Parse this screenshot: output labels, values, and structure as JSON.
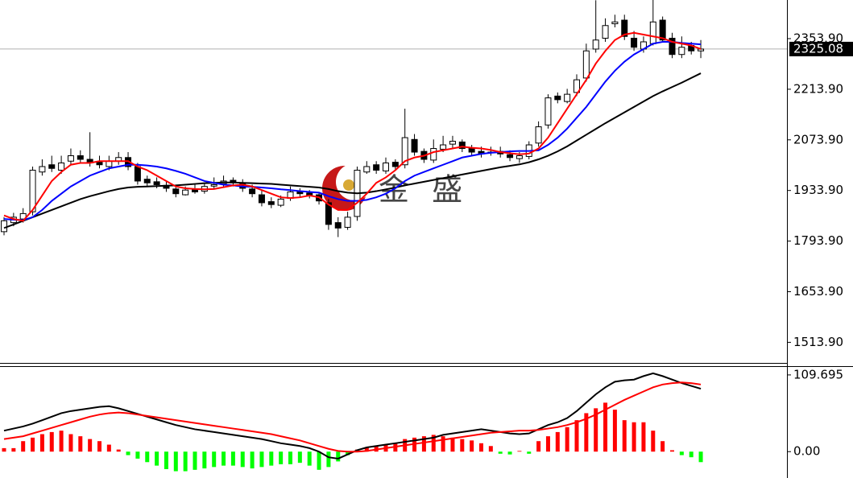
{
  "watermark": "金 盛",
  "chart_data": [
    {
      "type": "candlestick",
      "ylim": [
        1454.7,
        2460.7
      ],
      "yticks": [
        {
          "value": 2353.9,
          "label": "2353.90"
        },
        {
          "value": 2213.9,
          "label": "2213.90"
        },
        {
          "value": 2073.9,
          "label": "2073.90"
        },
        {
          "value": 1933.9,
          "label": "1933.90"
        },
        {
          "value": 1793.9,
          "label": "1793.90"
        },
        {
          "value": 1653.9,
          "label": "1653.90"
        },
        {
          "value": 1513.9,
          "label": "1513.90"
        }
      ],
      "last_price": 2325.08,
      "up_color": "#ffffff",
      "down_color": "#000000",
      "open": [
        1820,
        1845,
        1855,
        1875,
        1985,
        2005,
        1990,
        2015,
        2030,
        2020,
        2012,
        2000,
        2015,
        2025,
        2000,
        1965,
        1958,
        1948,
        1938,
        1922,
        1937,
        1932,
        1946,
        1952,
        1962,
        1952,
        1938,
        1922,
        1903,
        1893,
        1912,
        1932,
        1927,
        1922,
        1900,
        1845,
        1832,
        1862,
        1985,
        2005,
        1988,
        2012,
        2005,
        2075,
        2042,
        2018,
        2048,
        2062,
        2068,
        2052,
        2042,
        2038,
        2042,
        2033,
        2022,
        2028,
        2065,
        2115,
        2195,
        2180,
        2205,
        2245,
        2325,
        2355,
        2395,
        2405,
        2355,
        2325,
        2340,
        2405,
        2355,
        2310,
        2335,
        2320
      ],
      "high": [
        1860,
        1872,
        1885,
        2000,
        2020,
        2030,
        2030,
        2050,
        2045,
        2095,
        2030,
        2030,
        2040,
        2040,
        2010,
        1975,
        1970,
        1960,
        1950,
        1945,
        1950,
        1955,
        1970,
        1975,
        1970,
        1965,
        1950,
        1935,
        1915,
        1920,
        1945,
        1940,
        1935,
        1930,
        1910,
        1860,
        1875,
        2000,
        2015,
        2015,
        2025,
        2020,
        2160,
        2090,
        2050,
        2075,
        2085,
        2085,
        2075,
        2060,
        2055,
        2055,
        2055,
        2045,
        2040,
        2070,
        2125,
        2200,
        2205,
        2215,
        2255,
        2340,
        2460,
        2410,
        2420,
        2420,
        2375,
        2360,
        2470,
        2415,
        2370,
        2360,
        2345,
        2350
      ],
      "low": [
        1810,
        1835,
        1845,
        1865,
        1975,
        1985,
        1980,
        2005,
        2010,
        2000,
        1995,
        1990,
        2005,
        1990,
        1950,
        1945,
        1940,
        1930,
        1915,
        1920,
        1925,
        1925,
        1938,
        1945,
        1945,
        1930,
        1915,
        1890,
        1885,
        1888,
        1905,
        1915,
        1912,
        1895,
        1825,
        1805,
        1825,
        1850,
        1980,
        1980,
        1980,
        1990,
        1995,
        2030,
        2010,
        2010,
        2040,
        2050,
        2040,
        2030,
        2025,
        2030,
        2025,
        2015,
        2010,
        2020,
        2055,
        2105,
        2175,
        2175,
        2195,
        2235,
        2315,
        2345,
        2385,
        2350,
        2320,
        2315,
        2335,
        2345,
        2300,
        2300,
        2310,
        2300
      ],
      "close": [
        1850,
        1860,
        1870,
        1990,
        2000,
        1995,
        2010,
        2030,
        2020,
        2010,
        2005,
        2015,
        2025,
        2000,
        1960,
        1955,
        1950,
        1940,
        1925,
        1935,
        1930,
        1945,
        1950,
        1960,
        1955,
        1940,
        1925,
        1900,
        1895,
        1910,
        1930,
        1925,
        1920,
        1905,
        1840,
        1830,
        1860,
        1990,
        2000,
        1990,
        2010,
        2000,
        2080,
        2040,
        2020,
        2050,
        2060,
        2070,
        2050,
        2040,
        2035,
        2040,
        2035,
        2025,
        2030,
        2060,
        2110,
        2190,
        2185,
        2200,
        2240,
        2320,
        2350,
        2390,
        2400,
        2360,
        2330,
        2345,
        2400,
        2350,
        2310,
        2330,
        2320,
        2325
      ],
      "series": [
        {
          "color": "#000000",
          "values": [
            1830,
            1840,
            1850,
            1860,
            1870,
            1880,
            1890,
            1900,
            1910,
            1918,
            1925,
            1932,
            1938,
            1942,
            1944,
            1945,
            1946,
            1947,
            1948,
            1950,
            1952,
            1954,
            1955,
            1956,
            1956,
            1955,
            1954,
            1953,
            1952,
            1950,
            1948,
            1946,
            1944,
            1942,
            1938,
            1932,
            1928,
            1926,
            1928,
            1932,
            1937,
            1942,
            1948,
            1953,
            1958,
            1963,
            1968,
            1973,
            1978,
            1983,
            1988,
            1993,
            1998,
            2002,
            2006,
            2012,
            2020,
            2030,
            2042,
            2056,
            2072,
            2088,
            2104,
            2120,
            2135,
            2150,
            2165,
            2180,
            2195,
            2208,
            2220,
            2232,
            2245,
            2258
          ]
        },
        {
          "color": "#0000ff",
          "values": [
            1855,
            1853,
            1852,
            1860,
            1880,
            1905,
            1925,
            1945,
            1960,
            1975,
            1985,
            1995,
            2000,
            2005,
            2005,
            2003,
            2000,
            1995,
            1988,
            1980,
            1970,
            1960,
            1955,
            1950,
            1948,
            1945,
            1944,
            1942,
            1940,
            1937,
            1935,
            1932,
            1930,
            1928,
            1918,
            1910,
            1905,
            1905,
            1908,
            1915,
            1925,
            1940,
            1960,
            1975,
            1985,
            1995,
            2005,
            2015,
            2025,
            2030,
            2035,
            2038,
            2040,
            2042,
            2043,
            2043,
            2045,
            2060,
            2080,
            2105,
            2135,
            2165,
            2200,
            2235,
            2265,
            2290,
            2310,
            2325,
            2340,
            2345,
            2345,
            2342,
            2340,
            2338
          ]
        },
        {
          "color": "#ff0000",
          "values": [
            1865,
            1855,
            1850,
            1880,
            1920,
            1960,
            1985,
            2005,
            2010,
            2010,
            2015,
            2015,
            2015,
            2015,
            2000,
            1990,
            1975,
            1960,
            1945,
            1940,
            1938,
            1937,
            1938,
            1943,
            1948,
            1950,
            1945,
            1935,
            1925,
            1915,
            1913,
            1915,
            1920,
            1915,
            1895,
            1880,
            1880,
            1900,
            1925,
            1955,
            1970,
            1990,
            2015,
            2025,
            2030,
            2040,
            2045,
            2050,
            2055,
            2052,
            2050,
            2046,
            2040,
            2037,
            2034,
            2036,
            2050,
            2080,
            2120,
            2160,
            2200,
            2240,
            2285,
            2320,
            2350,
            2365,
            2370,
            2365,
            2360,
            2355,
            2345,
            2340,
            2335,
            2325
          ]
        }
      ]
    },
    {
      "type": "macd",
      "ylim": [
        -37.7,
        121.1
      ],
      "yticks": [
        109.695,
        {
          "value": 0,
          "label": "0.00"
        }
      ],
      "up_color": "#ff0000",
      "down_color": "#00ff00",
      "histogram": [
        5,
        5,
        15,
        20,
        25,
        28,
        30,
        25,
        22,
        18,
        15,
        10,
        3,
        -5,
        -10,
        -15,
        -20,
        -25,
        -28,
        -28,
        -26,
        -24,
        -22,
        -20,
        -20,
        -22,
        -24,
        -22,
        -20,
        -18,
        -18,
        -16,
        -20,
        -26,
        -22,
        -14,
        -5,
        3,
        6,
        8,
        10,
        12,
        18,
        20,
        22,
        24,
        22,
        20,
        18,
        16,
        12,
        8,
        -3,
        -4,
        1,
        -3,
        15,
        22,
        28,
        35,
        45,
        55,
        62,
        70,
        60,
        45,
        42,
        42,
        30,
        15,
        2,
        -5,
        -8,
        -15
      ],
      "series": [
        {
          "color": "#000000",
          "values": [
            30,
            33,
            36,
            40,
            45,
            50,
            55,
            58,
            60,
            62,
            64,
            65,
            62,
            58,
            54,
            50,
            46,
            42,
            38,
            35,
            32,
            30,
            28,
            26,
            24,
            22,
            20,
            18,
            15,
            12,
            10,
            8,
            5,
            0,
            -8,
            -10,
            -4,
            2,
            6,
            8,
            10,
            12,
            14,
            16,
            18,
            20,
            24,
            26,
            28,
            30,
            32,
            30,
            28,
            26,
            25,
            26,
            32,
            38,
            42,
            48,
            58,
            70,
            82,
            92,
            100,
            102,
            103,
            108,
            112,
            108,
            103,
            98,
            94,
            90
          ]
        },
        {
          "color": "#ff0000",
          "values": [
            18,
            20,
            22,
            26,
            30,
            34,
            38,
            42,
            46,
            50,
            53,
            55,
            56,
            55,
            53,
            51,
            49,
            47,
            45,
            43,
            41,
            39,
            37,
            35,
            33,
            31,
            29,
            27,
            25,
            22,
            19,
            16,
            12,
            8,
            4,
            1,
            0,
            0,
            1,
            3,
            5,
            7,
            9,
            11,
            13,
            15,
            17,
            19,
            21,
            23,
            25,
            27,
            28,
            29,
            30,
            30,
            31,
            33,
            35,
            38,
            42,
            47,
            53,
            60,
            67,
            74,
            80,
            86,
            92,
            96,
            98,
            99,
            98,
            96
          ]
        }
      ]
    }
  ]
}
